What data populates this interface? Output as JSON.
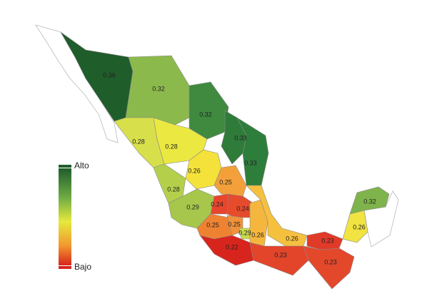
{
  "legend": {
    "high": "Alto",
    "low": "Bajo"
  },
  "regions": [
    {
      "value": 0.36,
      "color": "#1f5d2b"
    },
    {
      "value": 0.32,
      "color": "#8cb94c"
    },
    {
      "value": 0.32,
      "color": "#3f8a3f"
    },
    {
      "value": 0.33,
      "color": "#2f7b39"
    },
    {
      "value": 0.33,
      "color": "#2e7e3b"
    },
    {
      "value": 0.28,
      "color": "#d7e04a"
    },
    {
      "value": 0.28,
      "color": "#ebe941"
    },
    {
      "value": 0.26,
      "color": "#f4e23a"
    },
    {
      "value": 0.25,
      "color": "#f3a03a"
    },
    {
      "value": 0.28,
      "color": "#b4d04b"
    },
    {
      "value": 0.29,
      "color": "#a6c74b"
    },
    {
      "value": 0.24,
      "color": "#e8452d"
    },
    {
      "value": 0.24,
      "color": "#e64b2c"
    },
    {
      "value": 0.25,
      "color": "#ef8231"
    },
    {
      "value": 0.25,
      "color": "#f0923a"
    },
    {
      "value": 0.29,
      "color": "#c9da4a"
    },
    {
      "value": 0.26,
      "color": "#f5b63e"
    },
    {
      "value": 0.26,
      "color": "#f6c03f"
    },
    {
      "value": 0.23,
      "color": "#e03a29"
    },
    {
      "value": 0.22,
      "color": "#d7251e"
    },
    {
      "value": 0.23,
      "color": "#e3452a"
    },
    {
      "value": 0.23,
      "color": "#e4482b"
    },
    {
      "value": 0.26,
      "color": "#f1e342"
    },
    {
      "value": 0.32,
      "color": "#7fb34b"
    }
  ]
}
